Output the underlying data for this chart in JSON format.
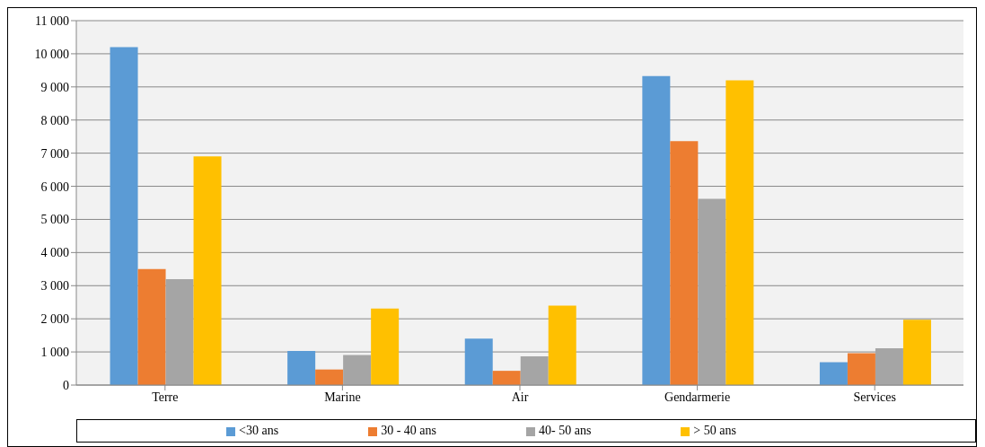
{
  "chart_data": {
    "type": "bar",
    "categories": [
      "Terre",
      "Marine",
      "Air",
      "Gendarmerie",
      "Services"
    ],
    "series": [
      {
        "name": "<30 ans",
        "color": "#5b9bd5",
        "values": [
          10200,
          1030,
          1400,
          9330,
          690
        ]
      },
      {
        "name": "30 - 40 ans",
        "color": "#ed7d31",
        "values": [
          3500,
          470,
          430,
          7360,
          960
        ]
      },
      {
        "name": "40- 50 ans",
        "color": "#a5a5a5",
        "values": [
          3200,
          910,
          870,
          5620,
          1110
        ]
      },
      {
        "name": "> 50 ans",
        "color": "#ffc000",
        "values": [
          6900,
          2310,
          2400,
          9200,
          1970
        ]
      }
    ],
    "ylim": [
      0,
      11000
    ],
    "yticks": [
      0,
      {
        "value": 1000,
        "label": "1 000"
      },
      {
        "value": 2000,
        "label": "2 000"
      },
      {
        "value": 3000,
        "label": "3 000"
      },
      {
        "value": 4000,
        "label": "4 000"
      },
      {
        "value": 5000,
        "label": "5 000"
      },
      {
        "value": 6000,
        "label": "6 000"
      },
      {
        "value": 7000,
        "label": "7 000"
      },
      {
        "value": 8000,
        "label": "8 000"
      },
      {
        "value": 9000,
        "label": "9 000"
      },
      {
        "value": 10000,
        "label": "10 000"
      },
      {
        "value": 11000,
        "label": "11 000"
      }
    ],
    "grid": "y",
    "legend": "bottom"
  }
}
